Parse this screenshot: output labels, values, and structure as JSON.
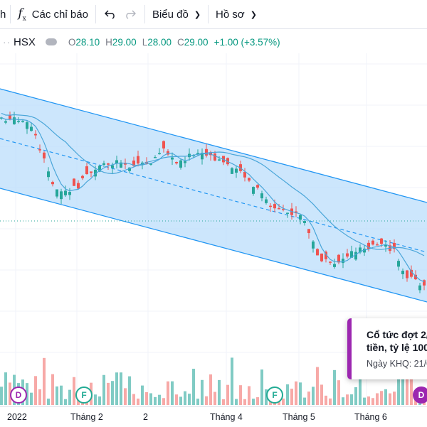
{
  "toolbar": {
    "cut_label": "h",
    "indicators_label": "Các chỉ báo",
    "chart_label": "Biểu đồ",
    "profile_label": "Hồ sơ"
  },
  "legend": {
    "symbol": "HSX",
    "open_k": "O",
    "open_v": "28.10",
    "high_k": "H",
    "high_v": "29.00",
    "low_k": "L",
    "low_v": "28.00",
    "close_k": "C",
    "close_v": "29.00",
    "change": "+1.00 (+3.57%)",
    "up_color": "#089981"
  },
  "time_axis": [
    "2022",
    "Tháng 2",
    "2",
    "Tháng 4",
    "Tháng 5",
    "Tháng 6"
  ],
  "events": {
    "dividend_letter": "D",
    "financial_letter": "F"
  },
  "tooltip": {
    "line1": "Cổ tức đợt 2/",
    "line2": "tiền, tỷ lệ 100",
    "line3": "Ngày KHQ: 21/0",
    "accent": "#9c27b0"
  },
  "chart_data": {
    "type": "candlestick",
    "channel_color": "#2196f3",
    "ma_color": "#4aa6d9",
    "up_color": "#26a69a",
    "down_color": "#ef5350",
    "last_bar": {
      "open": 28.1,
      "high": 29.0,
      "low": 28.0,
      "close": 29.0,
      "change": 1.0,
      "change_pct": 3.57
    }
  }
}
